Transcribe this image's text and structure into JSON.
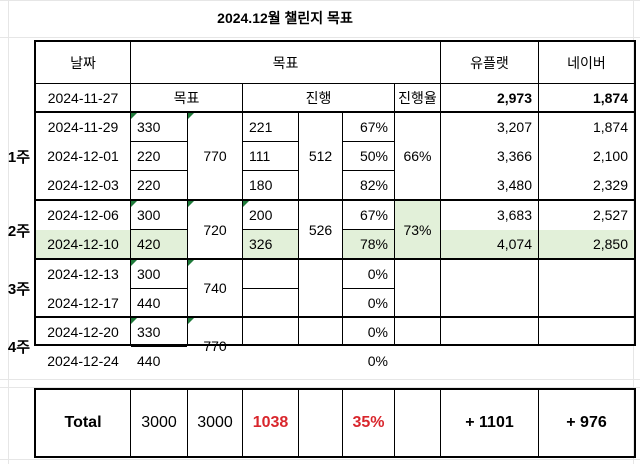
{
  "title": "2024.12월 챌린지 목표",
  "headers": {
    "date": "날짜",
    "goal": "목표",
    "upplat": "유플랫",
    "naver": "네이버"
  },
  "subheaders": {
    "date": "2024-11-27",
    "goal": "목표",
    "progress": "진행",
    "rate": "진행율",
    "upplat": "2,973",
    "naver": "1,874"
  },
  "weeks": [
    "1주",
    "2주",
    "3주",
    "4주"
  ],
  "rows": [
    {
      "date": "2024-11-29",
      "goal": "330",
      "progress": "221",
      "rate": "67%",
      "upplat": "3,207",
      "naver": "1,874"
    },
    {
      "date": "2024-12-01",
      "goal": "220",
      "progress": "111",
      "rate": "50%",
      "upplat": "3,366",
      "naver": "2,100"
    },
    {
      "date": "2024-12-03",
      "goal": "220",
      "progress": "180",
      "rate": "82%",
      "upplat": "3,480",
      "naver": "2,329"
    },
    {
      "date": "2024-12-06",
      "goal": "300",
      "progress": "200",
      "rate": "67%",
      "upplat": "3,683",
      "naver": "2,527"
    },
    {
      "date": "2024-12-10",
      "goal": "420",
      "progress": "326",
      "rate": "78%",
      "upplat": "4,074",
      "naver": "2,850"
    },
    {
      "date": "2024-12-13",
      "goal": "300",
      "progress": "",
      "rate": "0%",
      "upplat": "",
      "naver": ""
    },
    {
      "date": "2024-12-17",
      "goal": "440",
      "progress": "",
      "rate": "0%",
      "upplat": "",
      "naver": ""
    },
    {
      "date": "2024-12-20",
      "goal": "330",
      "progress": "",
      "rate": "0%",
      "upplat": "",
      "naver": ""
    },
    {
      "date": "2024-12-24",
      "goal": "440",
      "progress": "",
      "rate": "0%",
      "upplat": "",
      "naver": ""
    }
  ],
  "week_goal": [
    "770",
    "720",
    "740",
    "770"
  ],
  "week_progress": [
    "512",
    "526"
  ],
  "week_rate": [
    "66%",
    "73%"
  ],
  "total": {
    "label": "Total",
    "goal": "3000",
    "goal_sum": "3000",
    "progress": "1038",
    "rate": "35%",
    "upplat": "+ 1101",
    "naver": "+ 976"
  },
  "colors": {
    "highlight_row": "#e2f0d9",
    "total_red": "#d9262c",
    "comment_marker": "#1f7a3a"
  }
}
